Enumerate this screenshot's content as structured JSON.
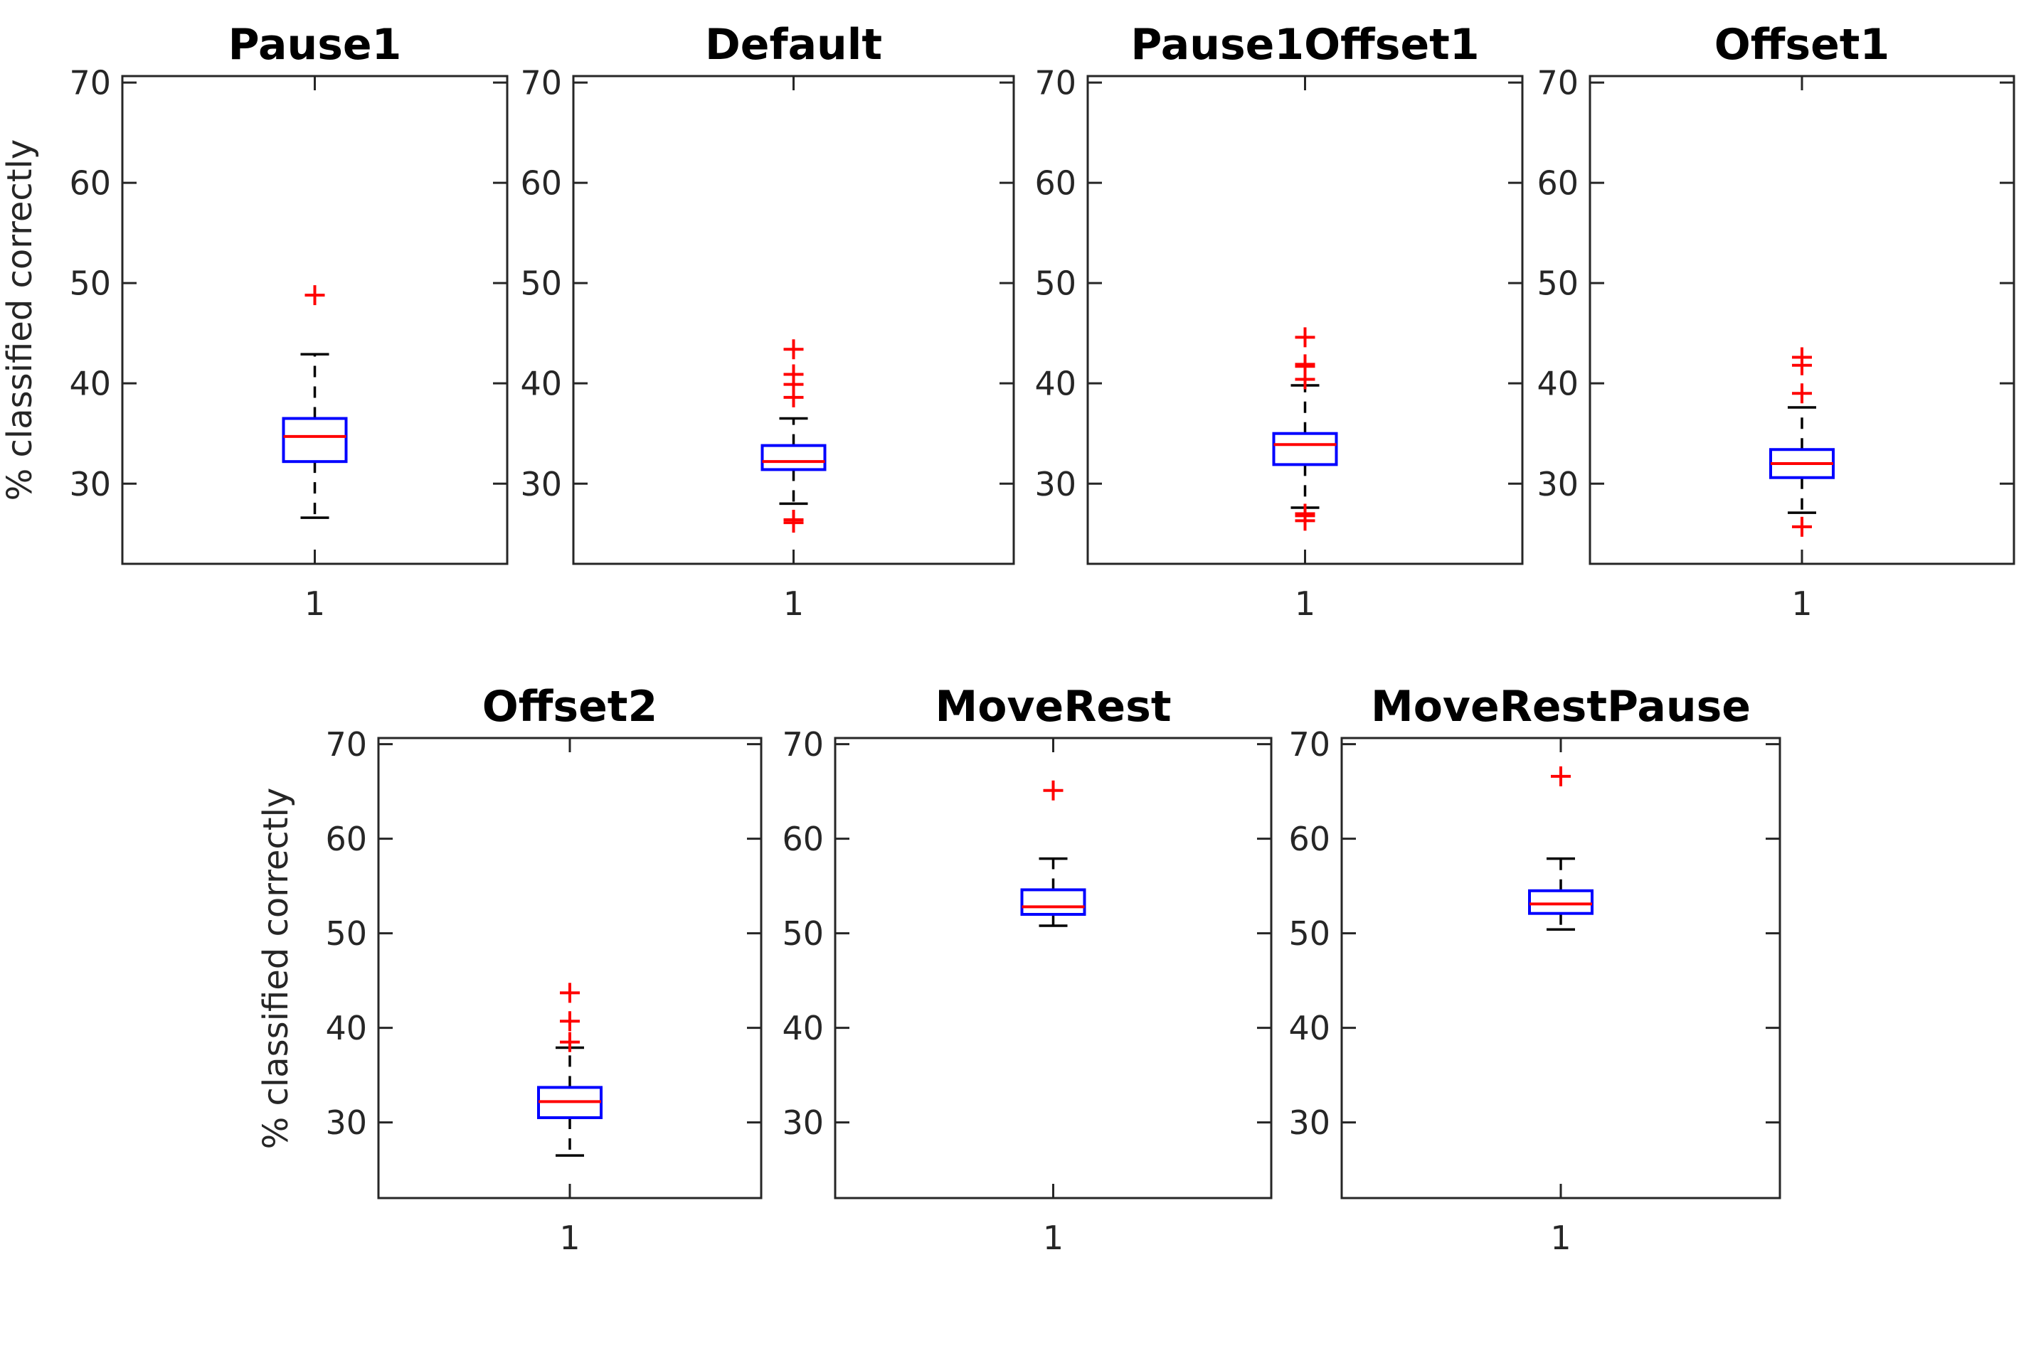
{
  "chart_data": {
    "type": "boxplot",
    "ylabel": "% classified correctly",
    "ylim": [
      22,
      70.65
    ],
    "yticks": [
      30,
      40,
      50,
      60,
      70
    ],
    "xtick_label": "1",
    "grid": false,
    "rows": 2,
    "colors": {
      "box": "#0000FF",
      "median": "#FF0000",
      "outlier": "#FF0000",
      "whisker": "#000000",
      "axis": "#262626",
      "title": "#000000"
    },
    "subplots": [
      {
        "title": "Pause1",
        "row": 0,
        "x": "1",
        "median": 34.7,
        "q1": 32.2,
        "q3": 36.5,
        "whisker_low": 26.6,
        "whisker_high": 42.9,
        "outliers": [
          48.8
        ]
      },
      {
        "title": "Default",
        "row": 0,
        "x": "1",
        "median": 32.2,
        "q1": 31.4,
        "q3": 33.8,
        "whisker_low": 28.0,
        "whisker_high": 36.5,
        "outliers": [
          43.4,
          40.9,
          39.9,
          38.6,
          26.4,
          26.1
        ]
      },
      {
        "title": "Pause1Offset1",
        "row": 0,
        "x": "1",
        "median": 33.9,
        "q1": 31.9,
        "q3": 35.0,
        "whisker_low": 27.6,
        "whisker_high": 39.8,
        "outliers": [
          44.6,
          41.9,
          41.7,
          40.4,
          27.0,
          26.8,
          26.3
        ]
      },
      {
        "title": "Offset1",
        "row": 0,
        "x": "1",
        "median": 32.0,
        "q1": 30.6,
        "q3": 33.4,
        "whisker_low": 27.1,
        "whisker_high": 37.6,
        "outliers": [
          42.6,
          41.8,
          39.0,
          25.7
        ]
      },
      {
        "title": "Offset2",
        "row": 1,
        "x": "1",
        "median": 32.2,
        "q1": 30.5,
        "q3": 33.7,
        "whisker_low": 26.5,
        "whisker_high": 37.9,
        "outliers": [
          43.7,
          40.7,
          38.5
        ]
      },
      {
        "title": "MoveRest",
        "row": 1,
        "x": "1",
        "median": 52.8,
        "q1": 52.0,
        "q3": 54.6,
        "whisker_low": 50.8,
        "whisker_high": 57.9,
        "outliers": [
          65.1
        ]
      },
      {
        "title": "MoveRestPause",
        "row": 1,
        "x": "1",
        "median": 53.1,
        "q1": 52.1,
        "q3": 54.5,
        "whisker_low": 50.4,
        "whisker_high": 57.9,
        "outliers": [
          66.6
        ]
      }
    ]
  }
}
